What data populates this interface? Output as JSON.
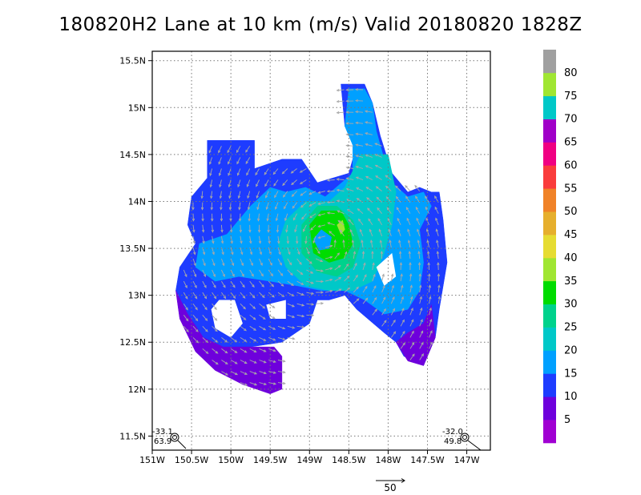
{
  "title": "180820H2 Lane at 10 km (m/s) Valid 20180820  1828Z",
  "chart_data": {
    "type": "heatmap",
    "title": "180820H2 Lane at 10 km (m/s) Valid 20180820  1828Z",
    "units": "m/s",
    "xlim": [
      -151.0,
      -146.7
    ],
    "ylim": [
      11.35,
      15.6
    ],
    "x_ticks": [
      {
        "value": -151.0,
        "label": "151W"
      },
      {
        "value": -150.5,
        "label": "150.5W"
      },
      {
        "value": -150.0,
        "label": "150W"
      },
      {
        "value": -149.5,
        "label": "149.5W"
      },
      {
        "value": -149.0,
        "label": "149W"
      },
      {
        "value": -148.5,
        "label": "148.5W"
      },
      {
        "value": -148.0,
        "label": "148W"
      },
      {
        "value": -147.5,
        "label": "147.5W"
      },
      {
        "value": -147.0,
        "label": "147W"
      }
    ],
    "y_ticks": [
      {
        "value": 11.5,
        "label": "11.5N"
      },
      {
        "value": 12.0,
        "label": "12N"
      },
      {
        "value": 12.5,
        "label": "12.5N"
      },
      {
        "value": 13.0,
        "label": "13N"
      },
      {
        "value": 13.5,
        "label": "13.5N"
      },
      {
        "value": 14.0,
        "label": "14N"
      },
      {
        "value": 14.5,
        "label": "14.5N"
      },
      {
        "value": 15.0,
        "label": "15N"
      },
      {
        "value": 15.5,
        "label": "15.5N"
      }
    ],
    "grid": true,
    "colorbar": {
      "levels": [
        {
          "min": 0,
          "max": 5,
          "color": "#a000d2",
          "label": "5"
        },
        {
          "min": 5,
          "max": 10,
          "color": "#6e00dc",
          "label": "10"
        },
        {
          "min": 10,
          "max": 15,
          "color": "#1e3cff",
          "label": "15"
        },
        {
          "min": 15,
          "max": 20,
          "color": "#00a0ff",
          "label": "20"
        },
        {
          "min": 20,
          "max": 25,
          "color": "#00c8c8",
          "label": "25"
        },
        {
          "min": 25,
          "max": 30,
          "color": "#00d28c",
          "label": "30"
        },
        {
          "min": 30,
          "max": 35,
          "color": "#00dc00",
          "label": "35"
        },
        {
          "min": 35,
          "max": 40,
          "color": "#a0e632",
          "label": "40"
        },
        {
          "min": 40,
          "max": 45,
          "color": "#e6dc32",
          "label": "45"
        },
        {
          "min": 45,
          "max": 50,
          "color": "#e6af2d",
          "label": "50"
        },
        {
          "min": 50,
          "max": 55,
          "color": "#f08228",
          "label": "55"
        },
        {
          "min": 55,
          "max": 60,
          "color": "#fa3c3c",
          "label": "60"
        },
        {
          "min": 60,
          "max": 65,
          "color": "#f00082",
          "label": "65"
        },
        {
          "min": 65,
          "max": 70,
          "color": "#a000c8",
          "label": "70"
        },
        {
          "min": 70,
          "max": 75,
          "color": "#00c8c8",
          "label": "75"
        },
        {
          "min": 75,
          "max": 80,
          "color": "#a0e632",
          "label": "80"
        },
        {
          "min": 80,
          "max": 90,
          "color": "#a0a0a0",
          "label": ""
        }
      ]
    },
    "storm_center": {
      "lon": -148.8,
      "lat": 13.55
    },
    "regions": [
      {
        "level": 10,
        "points": [
          [
            -150.3,
            14.65
          ],
          [
            -149.7,
            14.65
          ],
          [
            -149.7,
            14.35
          ],
          [
            -149.35,
            14.45
          ],
          [
            -149.1,
            14.45
          ],
          [
            -148.9,
            14.2
          ],
          [
            -148.5,
            14.3
          ],
          [
            -148.4,
            14.6
          ],
          [
            -148.55,
            14.8
          ],
          [
            -148.6,
            15.25
          ],
          [
            -148.3,
            15.25
          ],
          [
            -148.2,
            15.05
          ],
          [
            -148.1,
            14.7
          ],
          [
            -147.95,
            14.3
          ],
          [
            -147.75,
            14.1
          ],
          [
            -147.6,
            14.15
          ],
          [
            -147.45,
            14.1
          ],
          [
            -147.35,
            14.1
          ],
          [
            -147.3,
            13.8
          ],
          [
            -147.25,
            13.35
          ],
          [
            -147.35,
            12.85
          ],
          [
            -147.4,
            12.55
          ],
          [
            -147.55,
            12.25
          ],
          [
            -147.8,
            12.35
          ],
          [
            -147.9,
            12.5
          ],
          [
            -148.05,
            12.6
          ],
          [
            -148.4,
            12.85
          ],
          [
            -148.55,
            13.0
          ],
          [
            -148.75,
            12.95
          ],
          [
            -148.9,
            12.95
          ],
          [
            -149.0,
            12.7
          ],
          [
            -149.35,
            12.5
          ],
          [
            -149.75,
            12.45
          ],
          [
            -150.15,
            12.45
          ],
          [
            -150.35,
            12.55
          ],
          [
            -150.6,
            12.8
          ],
          [
            -150.7,
            13.05
          ],
          [
            -150.65,
            13.3
          ],
          [
            -150.45,
            13.55
          ],
          [
            -150.55,
            13.75
          ],
          [
            -150.5,
            14.05
          ],
          [
            -150.3,
            14.25
          ]
        ]
      },
      {
        "level": 15,
        "points": [
          [
            -150.4,
            13.55
          ],
          [
            -150.05,
            13.65
          ],
          [
            -149.75,
            13.95
          ],
          [
            -149.5,
            14.15
          ],
          [
            -149.3,
            14.1
          ],
          [
            -149.05,
            14.15
          ],
          [
            -148.8,
            14.05
          ],
          [
            -148.45,
            14.3
          ],
          [
            -148.45,
            14.6
          ],
          [
            -148.55,
            14.8
          ],
          [
            -148.5,
            15.2
          ],
          [
            -148.3,
            15.2
          ],
          [
            -148.2,
            15.05
          ],
          [
            -148.15,
            14.75
          ],
          [
            -148.05,
            14.45
          ],
          [
            -147.95,
            14.2
          ],
          [
            -147.75,
            14.05
          ],
          [
            -147.55,
            14.1
          ],
          [
            -147.45,
            13.95
          ],
          [
            -147.6,
            13.7
          ],
          [
            -147.55,
            13.35
          ],
          [
            -147.6,
            13.05
          ],
          [
            -147.75,
            12.85
          ],
          [
            -148.05,
            12.8
          ],
          [
            -148.3,
            12.95
          ],
          [
            -148.55,
            13.05
          ],
          [
            -148.85,
            13.05
          ],
          [
            -149.15,
            13.1
          ],
          [
            -149.5,
            13.15
          ],
          [
            -149.9,
            13.2
          ],
          [
            -150.2,
            13.15
          ],
          [
            -150.45,
            13.3
          ]
        ]
      },
      {
        "level": 20,
        "points": [
          [
            -149.3,
            13.8
          ],
          [
            -149.05,
            14.0
          ],
          [
            -148.75,
            14.0
          ],
          [
            -148.55,
            14.15
          ],
          [
            -148.35,
            14.5
          ],
          [
            -148.0,
            14.5
          ],
          [
            -147.9,
            14.1
          ],
          [
            -147.95,
            13.75
          ],
          [
            -148.05,
            13.45
          ],
          [
            -148.2,
            13.15
          ],
          [
            -148.45,
            13.05
          ],
          [
            -148.75,
            13.05
          ],
          [
            -149.05,
            13.1
          ],
          [
            -149.3,
            13.3
          ],
          [
            -149.4,
            13.55
          ]
        ]
      },
      {
        "level": 25,
        "points": [
          [
            -149.1,
            13.75
          ],
          [
            -148.9,
            13.95
          ],
          [
            -148.65,
            13.95
          ],
          [
            -148.45,
            13.8
          ],
          [
            -148.35,
            13.55
          ],
          [
            -148.45,
            13.3
          ],
          [
            -148.65,
            13.2
          ],
          [
            -148.9,
            13.25
          ],
          [
            -149.1,
            13.45
          ]
        ]
      },
      {
        "level": 30,
        "points": [
          [
            -149.0,
            13.75
          ],
          [
            -148.85,
            13.9
          ],
          [
            -148.6,
            13.9
          ],
          [
            -148.5,
            13.75
          ],
          [
            -148.45,
            13.55
          ],
          [
            -148.55,
            13.4
          ],
          [
            -148.75,
            13.35
          ],
          [
            -148.95,
            13.45
          ]
        ]
      },
      {
        "level": 35,
        "points": [
          [
            -148.65,
            13.75
          ],
          [
            -148.58,
            13.8
          ],
          [
            -148.55,
            13.7
          ],
          [
            -148.6,
            13.65
          ]
        ]
      },
      {
        "level": 15,
        "points": [
          [
            -148.95,
            13.6
          ],
          [
            -148.85,
            13.7
          ],
          [
            -148.72,
            13.62
          ],
          [
            -148.75,
            13.5
          ],
          [
            -148.88,
            13.48
          ]
        ]
      },
      {
        "level": 5,
        "points": [
          [
            -150.7,
            13.05
          ],
          [
            -150.55,
            12.8
          ],
          [
            -150.35,
            12.55
          ],
          [
            -150.1,
            12.45
          ],
          [
            -149.75,
            12.45
          ],
          [
            -149.45,
            12.45
          ],
          [
            -149.35,
            12.35
          ],
          [
            -149.35,
            12.0
          ],
          [
            -149.5,
            11.95
          ],
          [
            -149.85,
            12.05
          ],
          [
            -150.2,
            12.2
          ],
          [
            -150.45,
            12.4
          ],
          [
            -150.65,
            12.75
          ]
        ]
      },
      {
        "level": 5,
        "points": [
          [
            -147.45,
            12.9
          ],
          [
            -147.4,
            12.55
          ],
          [
            -147.55,
            12.25
          ],
          [
            -147.75,
            12.3
          ],
          [
            -147.9,
            12.5
          ],
          [
            -147.75,
            12.6
          ],
          [
            -147.55,
            12.7
          ]
        ]
      }
    ],
    "holes": [
      [
        [
          -150.15,
          12.95
        ],
        [
          -149.95,
          12.95
        ],
        [
          -149.85,
          12.7
        ],
        [
          -150.0,
          12.55
        ],
        [
          -150.2,
          12.65
        ],
        [
          -150.25,
          12.85
        ]
      ],
      [
        [
          -148.15,
          13.3
        ],
        [
          -147.95,
          13.45
        ],
        [
          -147.9,
          13.2
        ],
        [
          -148.05,
          13.1
        ]
      ],
      [
        [
          -149.55,
          12.9
        ],
        [
          -149.3,
          12.95
        ],
        [
          -149.3,
          12.75
        ],
        [
          -149.5,
          12.75
        ]
      ]
    ],
    "wind_vectors": {
      "description": "cyclonic circulation arrows around storm center",
      "reference_speed": 50,
      "reference_label": "50"
    },
    "annotations": [
      {
        "text": "-33.1",
        "position": "bottom-left"
      },
      {
        "text": "63.9",
        "position": "bottom-left"
      },
      {
        "text": "-32.0",
        "position": "bottom-right"
      },
      {
        "text": "49.8",
        "position": "bottom-right"
      }
    ]
  }
}
